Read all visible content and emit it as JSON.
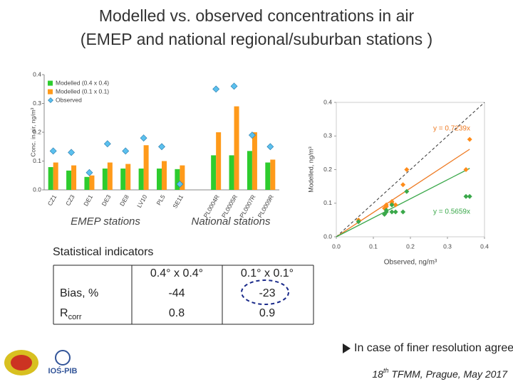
{
  "title": [
    "Modelled vs. observed concentrations in air",
    "(EMEP and national regional/suburban stations )"
  ],
  "chart_data": [
    {
      "type": "bar",
      "ylabel": "Conc. in air, ng/m³",
      "categories": [
        "CZ1",
        "CZ3",
        "DE1",
        "DE3",
        "DE8",
        "LV10",
        "PL5",
        "SE11",
        null,
        "PL0004R",
        "PL0005R",
        "PL0007R",
        "PL0009R"
      ],
      "series": [
        {
          "name": "Modelled (0.4 x 0.4)",
          "color": "#2ecc2e",
          "values": [
            0.079,
            0.067,
            0.045,
            0.074,
            0.074,
            0.074,
            0.074,
            0.072,
            null,
            0.12,
            0.12,
            0.135,
            0.095
          ]
        },
        {
          "name": "Modelled (0.1 x 0.1)",
          "color": "#ff9a1a",
          "values": [
            0.095,
            0.085,
            0.05,
            0.095,
            0.09,
            0.155,
            0.1,
            0.085,
            null,
            0.2,
            0.29,
            0.2,
            0.105
          ]
        },
        {
          "name": "Observed",
          "color": "#5bc0ee",
          "type": "scatter",
          "values": [
            0.135,
            0.13,
            0.06,
            0.16,
            0.135,
            0.18,
            0.15,
            0.02,
            null,
            0.35,
            0.36,
            0.19,
            0.15
          ]
        }
      ],
      "ylim": [
        0,
        0.4
      ],
      "yticks": [
        {
          "value": 0,
          "label": "0.0"
        },
        0.1,
        0.2,
        0.3,
        0.4
      ],
      "group_labels": [
        "EMEP stations",
        "National stations"
      ]
    },
    {
      "type": "scatter",
      "xlabel": "Observed, ng/m³",
      "ylabel": "Modelled, ng/m³",
      "series": [
        {
          "color": "#ff8c1a",
          "x": [
            0.135,
            0.13,
            0.06,
            0.16,
            0.135,
            0.18,
            0.15,
            0.35,
            0.36,
            0.19,
            0.15
          ],
          "values": [
            0.095,
            0.085,
            0.05,
            0.095,
            0.09,
            0.155,
            0.1,
            0.2,
            0.29,
            0.2,
            0.105
          ]
        },
        {
          "color": "#3aa84a",
          "x": [
            0.135,
            0.13,
            0.06,
            0.16,
            0.135,
            0.18,
            0.15,
            0.35,
            0.36,
            0.19,
            0.15
          ],
          "values": [
            0.079,
            0.067,
            0.045,
            0.074,
            0.074,
            0.074,
            0.074,
            0.12,
            0.12,
            0.135,
            0.095
          ]
        }
      ],
      "trendlines": [
        {
          "slope": 0.7239,
          "color": "#ee7a22",
          "label": "y = 0.7239x"
        },
        {
          "slope": 0.5659,
          "color": "#3aa84a",
          "label": "y = 0.5659x"
        }
      ],
      "xlim": [
        0,
        0.4
      ],
      "ylim": [
        0,
        0.4
      ],
      "xticks": [
        {
          "value": 0,
          "label": "0.0"
        },
        0.1,
        0.2,
        0.3,
        0.4
      ],
      "yticks": [
        {
          "value": 0,
          "label": "0.0"
        },
        0.1,
        0.2,
        0.3,
        0.4
      ]
    }
  ],
  "stats": {
    "title": "Statistical indicators",
    "headers": [
      "0.4° x 0.4°",
      "0.1° x 0.1°"
    ],
    "rows": [
      {
        "label": "Bias, %",
        "values": [
          "-44",
          "-23"
        ]
      },
      {
        "label": "R",
        "sub": "corr",
        "values": [
          "0.8",
          "0.9"
        ]
      }
    ]
  },
  "bullet": "In case of finer resolution agreement with observed levels is better",
  "footer": {
    "number": "18",
    "sup": "th",
    "text": " TFMM, Prague, May 2017"
  },
  "logo": "IOŚ-PIB"
}
